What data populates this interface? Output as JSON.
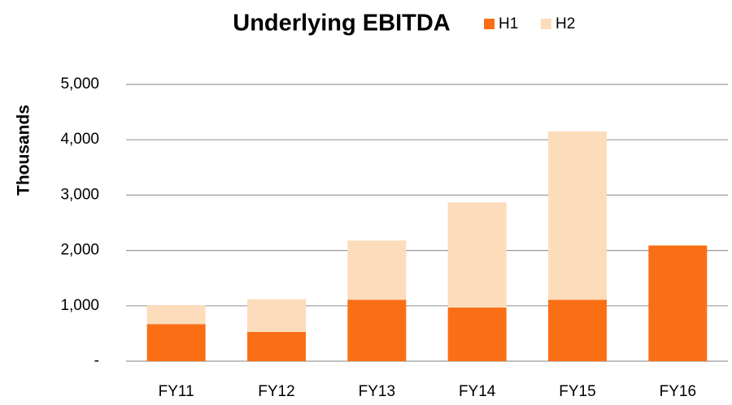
{
  "chart_data": {
    "type": "stacked_bar",
    "title": "Underlying EBITDA",
    "y_label": "Thousands",
    "categories": [
      "FY11",
      "FY12",
      "FY13",
      "FY14",
      "FY15",
      "FY16"
    ],
    "series": [
      {
        "name": "H1",
        "color": "#fa6f15",
        "values": [
          670,
          530,
          1110,
          970,
          1110,
          2090
        ]
      },
      {
        "name": "H2",
        "color": "#fcdcbb",
        "values": [
          340,
          590,
          1070,
          1900,
          3040,
          null
        ]
      }
    ],
    "ylim": [
      0,
      5000
    ],
    "yticks": [
      {
        "value": 0,
        "label": "-"
      },
      {
        "value": 1000,
        "label": "1,000"
      },
      {
        "value": 2000,
        "label": "2,000"
      },
      {
        "value": 3000,
        "label": "3,000"
      },
      {
        "value": 4000,
        "label": "4,000"
      },
      {
        "value": 5000,
        "label": "5,000"
      }
    ],
    "grid": true
  }
}
